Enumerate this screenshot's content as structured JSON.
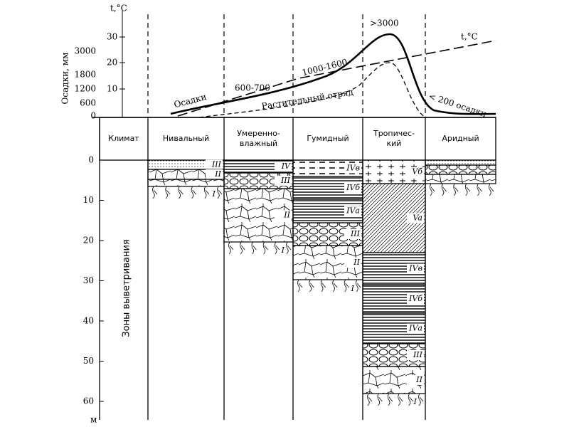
{
  "climate_chart": {
    "temperature_label": "t,°C",
    "temperature_ticks": [
      30,
      20,
      10
    ],
    "precipitation_label": "Осадки, мм",
    "precipitation_ticks": [
      3000,
      1800,
      1200,
      600,
      0
    ],
    "curve_labels": {
      "precipitation": "Осадки",
      "p600": "600-700",
      "p1000": "1000-1600",
      "peak": ">3000",
      "temperature": "t,°C",
      "vegetation": "Растительный отряд",
      "arid": "< 200 осадки"
    }
  },
  "table": {
    "header": [
      [
        "Климат"
      ],
      [
        "Нивальный"
      ],
      [
        "Умеренно-",
        "влажный"
      ],
      [
        "Гумидный"
      ],
      [
        "Тропичес-",
        "кий"
      ],
      [
        "Аридный"
      ]
    ],
    "row_label": "Зоны выветривания",
    "depth_ticks": [
      0,
      10,
      20,
      30,
      40,
      50,
      60
    ],
    "depth_unit": "м",
    "columns": [
      {
        "zones": [
          "III",
          "II",
          "I"
        ]
      },
      {
        "zones": [
          "IV",
          "III",
          "II",
          "I"
        ]
      },
      {
        "zones": [
          "IVв",
          "IVб",
          "IVа",
          "III",
          "II",
          "I"
        ]
      },
      {
        "zones": [
          "Vб",
          "Va",
          "IVв",
          "IVб",
          "IVа",
          "III",
          "II",
          "I"
        ]
      },
      {
        "zones": []
      }
    ]
  }
}
